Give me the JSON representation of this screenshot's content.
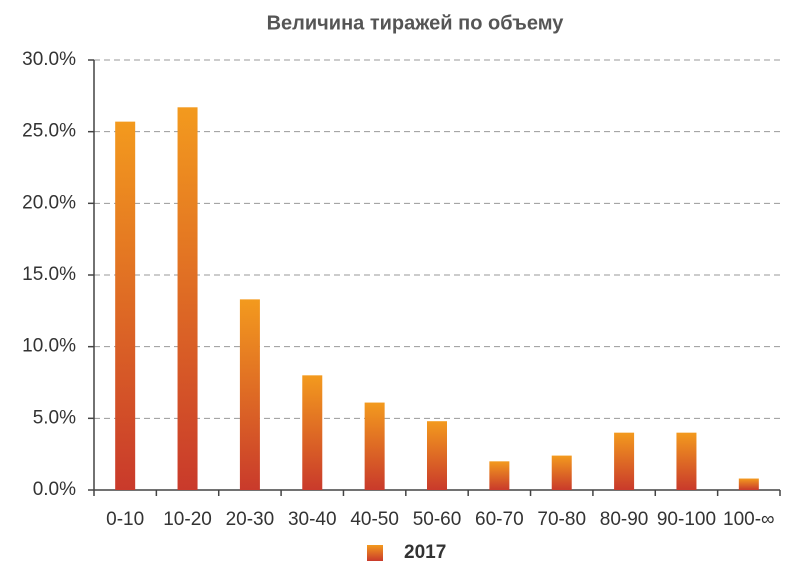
{
  "chart_data": {
    "type": "bar",
    "title": "Величина тиражей по объему",
    "categories": [
      "0-10",
      "10-20",
      "20-30",
      "30-40",
      "40-50",
      "50-60",
      "60-70",
      "70-80",
      "80-90",
      "90-100",
      "100-∞"
    ],
    "series": [
      {
        "name": "2017",
        "color": "#f39a1e",
        "values": [
          25.7,
          26.7,
          13.3,
          8.0,
          6.1,
          4.8,
          2.0,
          2.4,
          4.0,
          4.0,
          0.8
        ]
      }
    ],
    "ylim": [
      0,
      30
    ],
    "yticks": [
      {
        "value": 0,
        "label": "0.0%"
      },
      {
        "value": 5,
        "label": "5.0%"
      },
      {
        "value": 10,
        "label": "10.0%"
      },
      {
        "value": 15,
        "label": "15.0%"
      },
      {
        "value": 20,
        "label": "20.0%"
      },
      {
        "value": 25,
        "label": "25.0%"
      },
      {
        "value": 30,
        "label": "30.0%"
      }
    ],
    "grid": true
  }
}
